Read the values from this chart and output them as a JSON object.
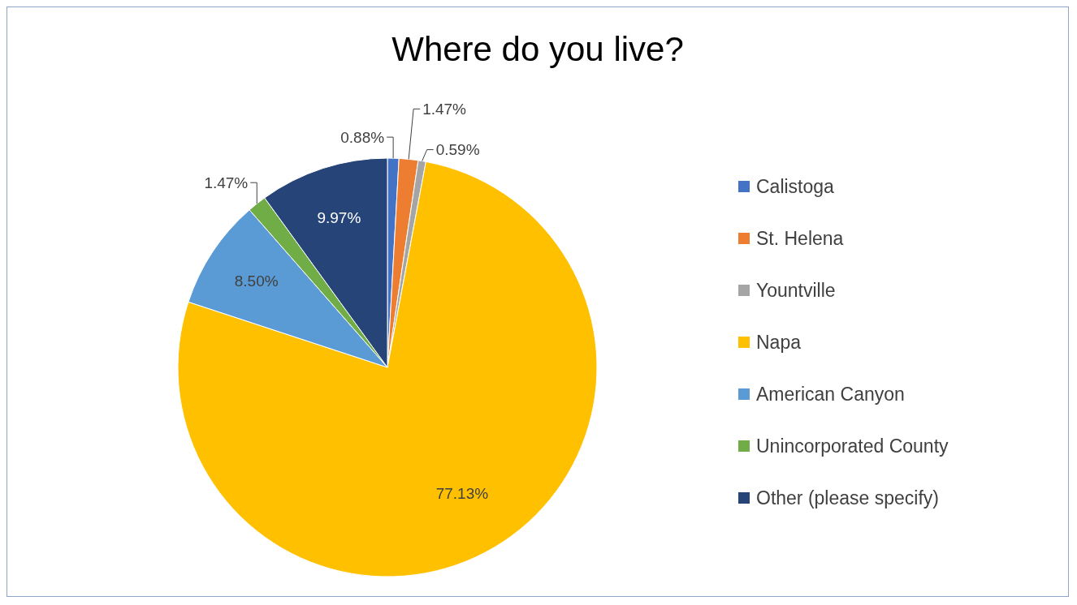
{
  "chart_data": {
    "type": "pie",
    "title": "Where do you live?",
    "categories": [
      "Calistoga",
      "St. Helena",
      "Yountville",
      "Napa",
      "American Canyon",
      "Unincorporated County",
      "Other (please specify)"
    ],
    "values": [
      0.88,
      1.47,
      0.59,
      77.13,
      8.5,
      1.47,
      9.97
    ],
    "colors": [
      "#4472c4",
      "#ed7d31",
      "#a5a5a5",
      "#ffc000",
      "#5b9bd5",
      "#70ad47",
      "#264478"
    ],
    "value_labels": [
      "0.88%",
      "1.47%",
      "0.59%",
      "77.13%",
      "8.50%",
      "1.47%",
      "9.97%"
    ],
    "legend": "right"
  }
}
